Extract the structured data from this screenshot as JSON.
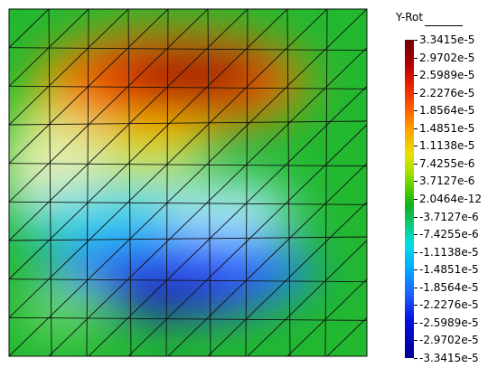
{
  "legend": {
    "title": "Y-Rot",
    "labels": [
      "3.3415e-5",
      "2.9702e-5",
      "2.5989e-5",
      "2.2276e-5",
      "1.8564e-5",
      "1.4851e-5",
      "1.1138e-5",
      "7.4255e-6",
      "3.7127e-6",
      "2.0464e-12",
      "-3.7127e-6",
      "-7.4255e-6",
      "-1.1138e-5",
      "-1.4851e-5",
      "-1.8564e-5",
      "-2.2276e-5",
      "-2.5989e-5",
      "-2.9702e-5",
      "-3.3415e-5"
    ]
  },
  "colors": {
    "max": "#6e0000",
    "high": "#e62000",
    "mid_high": "#e8e000",
    "zero": "#10b020",
    "mid_low": "#00e0e0",
    "low": "#2060ff",
    "min": "#000090",
    "mesh": "#111111"
  }
}
